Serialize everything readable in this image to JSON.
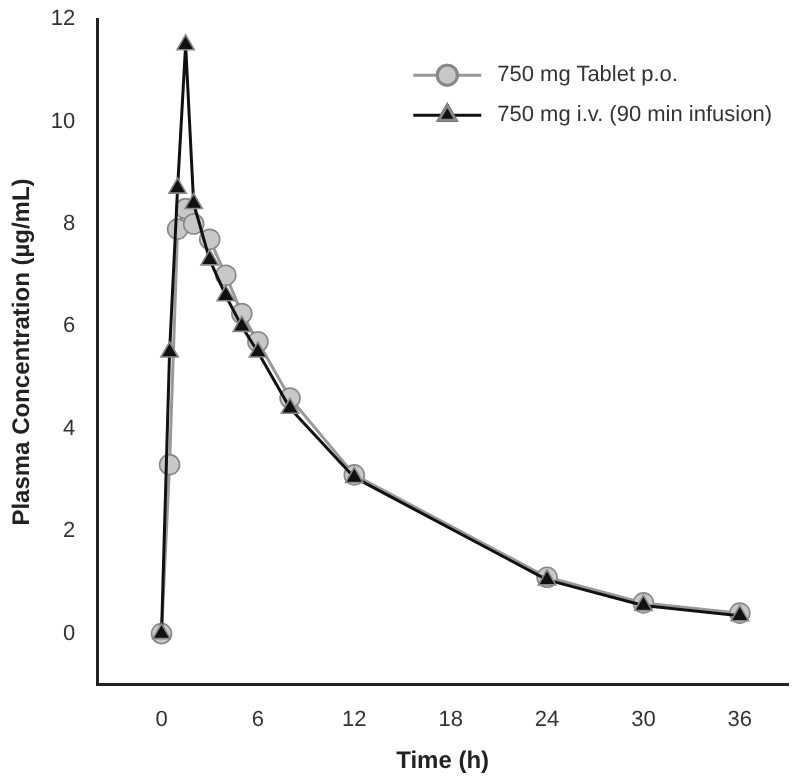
{
  "chart_data": {
    "type": "line",
    "xlabel": "Time (h)",
    "ylabel": "Plasma Concentration (µg/mL)",
    "xlim": [
      -4,
      39
    ],
    "xticks": [
      0,
      6,
      12,
      18,
      24,
      30,
      36
    ],
    "ylim": [
      -1,
      12
    ],
    "yticks": [
      0,
      2,
      4,
      6,
      8,
      10,
      12
    ],
    "grid": false,
    "legend": "top right",
    "series": [
      {
        "name": "750 mg Tablet p.o.",
        "color": "#c8c8c8",
        "marker": "circle",
        "x": [
          0,
          0.5,
          1,
          1.5,
          2,
          3,
          4,
          5,
          6,
          8,
          12,
          24,
          30,
          36
        ],
        "values": [
          0,
          3.3,
          7.9,
          8.3,
          8.0,
          7.7,
          7.0,
          6.25,
          5.7,
          4.6,
          3.1,
          1.1,
          0.6,
          0.4
        ]
      },
      {
        "name": "750 mg i.v. (90 min infusion)",
        "color": "#111111",
        "marker": "triangle",
        "x": [
          0,
          0.5,
          1,
          1.5,
          2,
          3,
          4,
          5,
          6,
          8,
          12,
          24,
          30,
          36
        ],
        "values": [
          0,
          5.5,
          8.7,
          11.5,
          8.4,
          7.3,
          6.6,
          6.0,
          5.5,
          4.4,
          3.05,
          1.05,
          0.55,
          0.35
        ]
      }
    ]
  }
}
